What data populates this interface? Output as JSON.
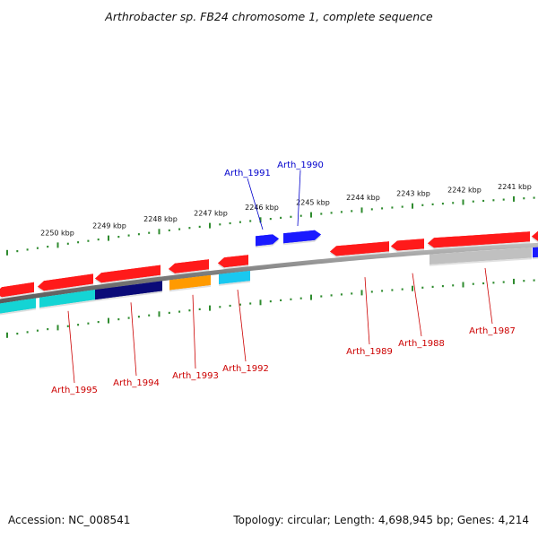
{
  "title": "Arthrobacter sp. FB24 chromosome 1, complete sequence",
  "footer": {
    "accession": "Accession: NC_008541",
    "topology": "Topology: circular; Length: 4,698,945 bp; Genes: 4,214"
  },
  "colors": {
    "backbone": "#8a8a8a",
    "ticks": "#2e8b2e",
    "label_forward": "#0000cc",
    "label_reverse": "#cc0000",
    "cog_red": "#ff1a1a",
    "cog_blue": "#1a1aff",
    "cog_cyan": "#14d4d4",
    "cog_cyan_light": "#19c8f0",
    "cog_navy": "#0a0a78",
    "cog_orange": "#ff9a00",
    "cog_gray": "#c0c0c0"
  },
  "scale": {
    "unit": "kbp",
    "labels": [
      "2250 kbp",
      "2249 kbp",
      "2248 kbp",
      "2247 kbp",
      "2246 kbp",
      "2245 kbp",
      "2244 kbp",
      "2243 kbp",
      "2242 kbp",
      "2241 kbp"
    ]
  },
  "gene_labels": [
    {
      "name": "Arth_1991",
      "strand": "forward"
    },
    {
      "name": "Arth_1990",
      "strand": "forward"
    },
    {
      "name": "Arth_1995",
      "strand": "reverse"
    },
    {
      "name": "Arth_1994",
      "strand": "reverse"
    },
    {
      "name": "Arth_1993",
      "strand": "reverse"
    },
    {
      "name": "Arth_1992",
      "strand": "reverse"
    },
    {
      "name": "Arth_1989",
      "strand": "reverse"
    },
    {
      "name": "Arth_1988",
      "strand": "reverse"
    },
    {
      "name": "Arth_1987",
      "strand": "reverse"
    }
  ]
}
